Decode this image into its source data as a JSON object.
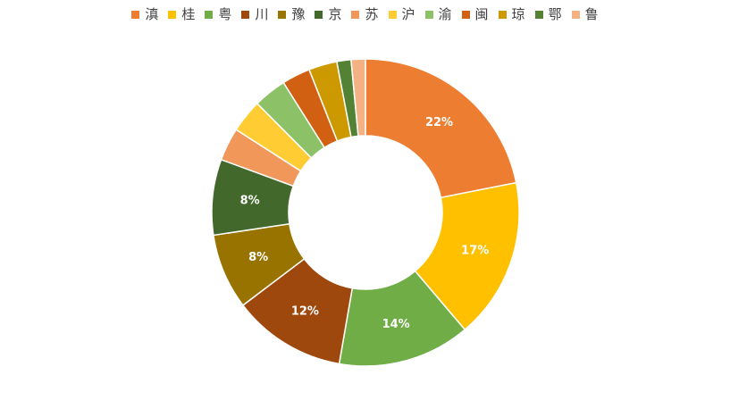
{
  "chart_data": {
    "type": "pie",
    "variant": "donut",
    "legend_position": "top",
    "categories": [
      "滇",
      "桂",
      "粤",
      "川",
      "豫",
      "京",
      "苏",
      "沪",
      "渝",
      "闽",
      "琼",
      "鄂",
      "鲁"
    ],
    "values": [
      22,
      17,
      14,
      12,
      8,
      8,
      3.5,
      3.5,
      3.5,
      3,
      3,
      1.5,
      1.5
    ],
    "data_labels": [
      "22%",
      "17%",
      "14%",
      "12%",
      "8%",
      "8%",
      "",
      "",
      "",
      "",
      "",
      "",
      ""
    ],
    "colors": [
      "#ED7D31",
      "#FFC000",
      "#70AD47",
      "#9E480E",
      "#997300",
      "#43682B",
      "#F1975A",
      "#FFCD33",
      "#8CC168",
      "#D26012",
      "#CC9A00",
      "#548235",
      "#F4B183"
    ]
  }
}
